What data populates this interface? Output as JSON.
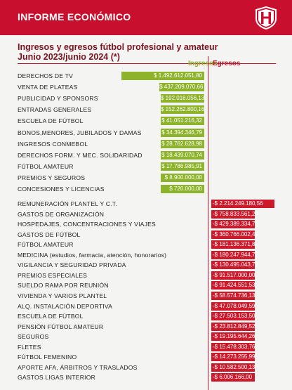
{
  "header": {
    "title": "INFORME ECONÓMICO"
  },
  "chart_data": {
    "type": "bar",
    "title_lines": [
      "Ingresos y egresos fútbol profesional y amateur",
      "Junio 2023/junio 2024 (*)"
    ],
    "legend": {
      "income": "Ingresos",
      "expenses": "Egresos"
    },
    "colors": {
      "income": "#8db32a",
      "expenses": "#cc1a2c",
      "accent": "#c8102e"
    },
    "ingresos": [
      {
        "label": "DERECHOS DE TV",
        "value": 1492612051.8,
        "text": "$ 1.492.612.051,80"
      },
      {
        "label": "VENTA DE PLATEAS",
        "value": 437209070.66,
        "text": "$ 437.209.070,66"
      },
      {
        "label": "PUBLICIDAD Y SPONSORS",
        "value": 192016056.13,
        "text": "$ 192.016.056,13"
      },
      {
        "label": "ENTRADAS GENERALES",
        "value": 152262800.16,
        "text": "$ 152.262.800,16"
      },
      {
        "label": "ESCUELA DE FÚTBOL",
        "value": 41051216.32,
        "text": "$ 41.051.216,32"
      },
      {
        "label": "BONOS,MENORES, JUBILADOS Y  DAMAS",
        "value": 34394346.79,
        "text": "$ 34.394.346,79"
      },
      {
        "label": "INGRESOS CONMEBOL",
        "value": 28762628.98,
        "text": "$ 28.762.628,98"
      },
      {
        "label": "DERECHOS FORM. Y MEC. SOLIDARIDAD",
        "value": 18439070.74,
        "text": "$ 18.439.070,74"
      },
      {
        "label": "FÚTBOL AMATEUR",
        "value": 17786985.91,
        "text": "$ 17.786.985,91"
      },
      {
        "label": "PREMIOS Y SEGUROS",
        "value": 8900000.0,
        "text": "$ 8.900.000,00"
      },
      {
        "label": "CONCESIONES Y LICENCIAS",
        "value": 720000.0,
        "text": "$ 720.000,00"
      }
    ],
    "egresos": [
      {
        "label": "REMUNERACIÓN PLANTEL Y C.T.",
        "value": -2214249180.56,
        "text": "-$ 2.214.249.180,56"
      },
      {
        "label": "GASTOS DE ORGANIZACIÓN",
        "value": -758833561.29,
        "text": "-$ 758.833.561,29"
      },
      {
        "label": "HOSPEDAJES, CONCENTRACIONES Y VIAJES",
        "value": -429389334.76,
        "text": "-$ 429.389.334,76"
      },
      {
        "label": "GASTOS DE FÚTBOL",
        "value": -360766002.49,
        "text": "-$ 360.766.002,49"
      },
      {
        "label": "FÚTBOL AMATEUR",
        "value": -181136371.84,
        "text": "-$ 181.136.371,84"
      },
      {
        "label": "MEDICINA (estudios, farmacia, atención, honorarios)",
        "value": -180247944.73,
        "text": "-$ 180.247.944,73"
      },
      {
        "label": "VIGILANCIA Y SEGURIDAD PRIVADA",
        "value": -130495043.71,
        "text": "-$ 130.495.043,71"
      },
      {
        "label": "PREMIOS ESPECIALES",
        "value": -91517000.0,
        "text": "-$ 91.517.000,00"
      },
      {
        "label": "SUELDO RAMA POR REUNIÓN",
        "value": -91424551.53,
        "text": "-$ 91.424.551,53"
      },
      {
        "label": "VIVIENDA Y VARIOS PLANTEL",
        "value": -58574736.13,
        "text": "-$ 58.574.736,13"
      },
      {
        "label": "ALQ. INSTALACIÓN DEPORTIVA",
        "value": -47078049.59,
        "text": "-$ 47.078.049,59"
      },
      {
        "label": "ESCUELA DE FÚTBOL",
        "value": -27503153.5,
        "text": "-$ 27.503.153,50"
      },
      {
        "label": "PENSIÓN FÚTBOL AMATEUR",
        "value": -23812849.52,
        "text": "-$ 23.812.849,52"
      },
      {
        "label": "SEGUROS",
        "value": -19195644.26,
        "text": "-$ 19.195.644,26"
      },
      {
        "label": "FLETES",
        "value": -15478303.76,
        "text": "-$ 15.478.303,76"
      },
      {
        "label": "FÚTBOL FEMENINO",
        "value": -14273255.99,
        "text": "-$ 14.273.255,99"
      },
      {
        "label": "APORTE AFA, ÁRBITROS Y TRASLADOS",
        "value": -10582500.13,
        "text": "-$ 10.582.500,13"
      },
      {
        "label": "GASTOS LIGAS INTERIOR",
        "value": -6006166.0,
        "text": "-$ 6.006.166,00"
      }
    ]
  }
}
